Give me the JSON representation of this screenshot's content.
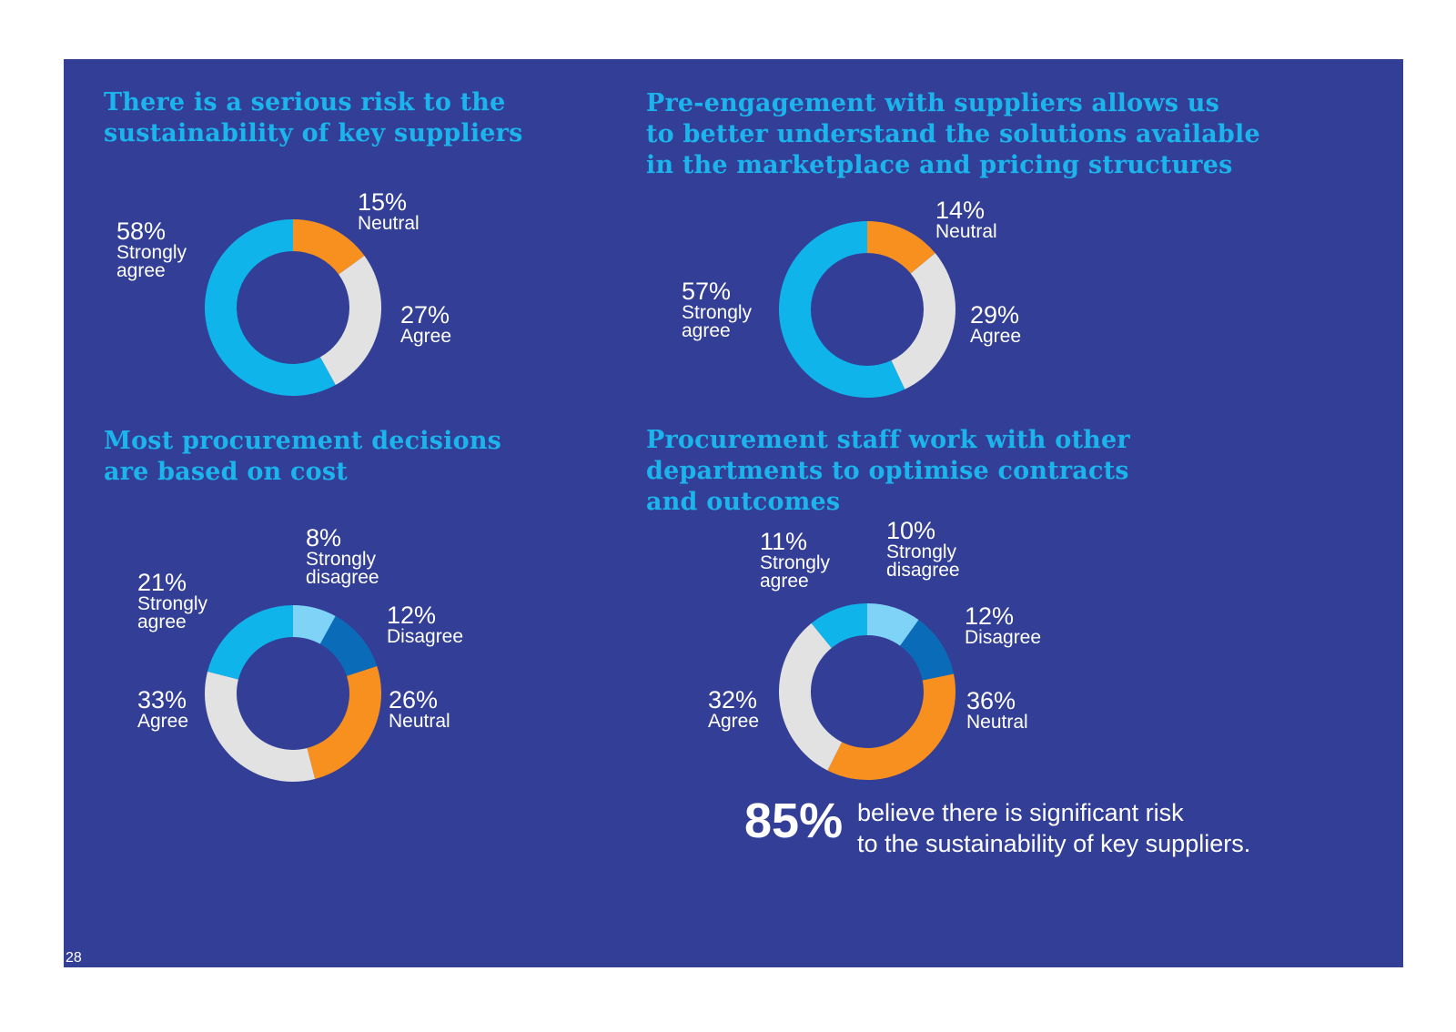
{
  "colors": {
    "background": "#333f97",
    "heading": "#1bb4ec",
    "text": "#ffffff",
    "strongly_agree": "#0fb4eb",
    "agree": "#e2e2e2",
    "neutral": "#f7901e",
    "disagree": "#0a6cb9",
    "strongly_disagree": "#7fd3f7"
  },
  "page_number": "28",
  "callout": {
    "value": "85%",
    "text_lines": [
      "believe there is significant risk",
      "to the sustainability of key suppliers."
    ]
  },
  "chart_data": [
    {
      "type": "pie",
      "style": "donut",
      "title_lines": [
        "There is a serious risk to the",
        "sustainability of key suppliers"
      ],
      "slices": [
        {
          "category": "Neutral",
          "value": 15,
          "label": "15%",
          "cat_lines": [
            "Neutral"
          ],
          "color": "#f7901e"
        },
        {
          "category": "Agree",
          "value": 27,
          "label": "27%",
          "cat_lines": [
            "Agree"
          ],
          "color": "#e2e2e2"
        },
        {
          "category": "Strongly agree",
          "value": 58,
          "label": "58%",
          "cat_lines": [
            "Strongly",
            "agree"
          ],
          "color": "#0fb4eb"
        }
      ]
    },
    {
      "type": "pie",
      "style": "donut",
      "title_lines": [
        "Pre-engagement with suppliers allows us",
        "to better understand the solutions available",
        "in the marketplace and pricing structures"
      ],
      "slices": [
        {
          "category": "Neutral",
          "value": 14,
          "label": "14%",
          "cat_lines": [
            "Neutral"
          ],
          "color": "#f7901e"
        },
        {
          "category": "Agree",
          "value": 29,
          "label": "29%",
          "cat_lines": [
            "Agree"
          ],
          "color": "#e2e2e2"
        },
        {
          "category": "Strongly agree",
          "value": 57,
          "label": "57%",
          "cat_lines": [
            "Strongly",
            "agree"
          ],
          "color": "#0fb4eb"
        }
      ]
    },
    {
      "type": "pie",
      "style": "donut",
      "title_lines": [
        "Most procurement decisions",
        "are based on cost"
      ],
      "slices": [
        {
          "category": "Strongly disagree",
          "value": 8,
          "label": "8%",
          "cat_lines": [
            "Strongly",
            "disagree"
          ],
          "color": "#7fd3f7"
        },
        {
          "category": "Disagree",
          "value": 12,
          "label": "12%",
          "cat_lines": [
            "Disagree"
          ],
          "color": "#0a6cb9"
        },
        {
          "category": "Neutral",
          "value": 26,
          "label": "26%",
          "cat_lines": [
            "Neutral"
          ],
          "color": "#f7901e"
        },
        {
          "category": "Agree",
          "value": 33,
          "label": "33%",
          "cat_lines": [
            "Agree"
          ],
          "color": "#e2e2e2"
        },
        {
          "category": "Strongly agree",
          "value": 21,
          "label": "21%",
          "cat_lines": [
            "Strongly",
            "agree"
          ],
          "color": "#0fb4eb"
        }
      ]
    },
    {
      "type": "pie",
      "style": "donut",
      "title_lines": [
        "Procurement staff work with other",
        "departments to optimise contracts",
        "and outcomes"
      ],
      "slices": [
        {
          "category": "Strongly disagree",
          "value": 10,
          "label": "10%",
          "cat_lines": [
            "Strongly",
            "disagree"
          ],
          "color": "#7fd3f7"
        },
        {
          "category": "Disagree",
          "value": 12,
          "label": "12%",
          "cat_lines": [
            "Disagree"
          ],
          "color": "#0a6cb9"
        },
        {
          "category": "Neutral",
          "value": 36,
          "label": "36%",
          "cat_lines": [
            "Neutral"
          ],
          "color": "#f7901e"
        },
        {
          "category": "Agree",
          "value": 32,
          "label": "32%",
          "cat_lines": [
            "Agree"
          ],
          "color": "#e2e2e2"
        },
        {
          "category": "Strongly agree",
          "value": 11,
          "label": "11%",
          "cat_lines": [
            "Strongly",
            "agree"
          ],
          "color": "#0fb4eb"
        }
      ]
    }
  ]
}
